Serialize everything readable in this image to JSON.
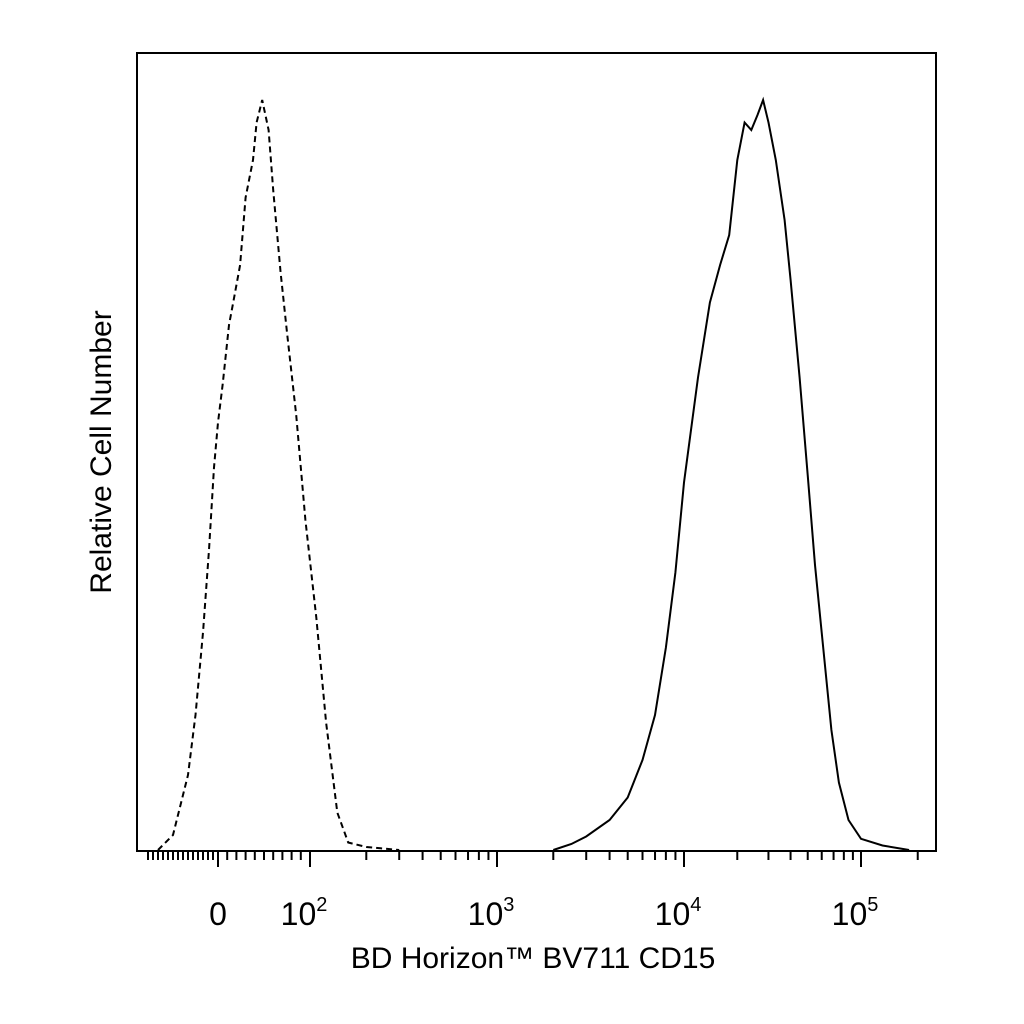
{
  "chart_data": {
    "type": "line",
    "title": "",
    "xlabel": "BD Horizon™ BV711 CD15",
    "ylabel": "Relative Cell Number",
    "x_scale": "biexponential (log above ~10^2, linear around 0)",
    "xlim": [
      -150,
      250000
    ],
    "ylim": [
      0,
      100
    ],
    "grid": false,
    "legend": "none",
    "x_tick_labels": [
      {
        "value": 0,
        "base": "0",
        "exp": ""
      },
      {
        "value": 100,
        "base": "10",
        "exp": "2"
      },
      {
        "value": 1000,
        "base": "10",
        "exp": "3"
      },
      {
        "value": 10000,
        "base": "10",
        "exp": "4"
      },
      {
        "value": 100000,
        "base": "10",
        "exp": "5"
      }
    ],
    "series": [
      {
        "style": "dashed",
        "points": [
          [
            -120,
            0
          ],
          [
            -90,
            2
          ],
          [
            -60,
            10
          ],
          [
            -45,
            18
          ],
          [
            -30,
            29
          ],
          [
            -18,
            40
          ],
          [
            -8,
            51
          ],
          [
            0,
            57
          ],
          [
            5,
            62
          ],
          [
            12,
            70
          ],
          [
            18,
            74
          ],
          [
            24,
            78
          ],
          [
            30,
            87
          ],
          [
            38,
            92
          ],
          [
            42,
            97
          ],
          [
            48,
            100
          ],
          [
            55,
            96
          ],
          [
            60,
            88
          ],
          [
            68,
            77
          ],
          [
            75,
            69
          ],
          [
            85,
            58
          ],
          [
            95,
            44
          ],
          [
            108,
            31
          ],
          [
            122,
            17
          ],
          [
            140,
            5
          ],
          [
            160,
            1
          ],
          [
            200,
            0.4
          ],
          [
            300,
            0
          ]
        ]
      },
      {
        "style": "solid",
        "points": [
          [
            2000,
            0
          ],
          [
            2500,
            0.8
          ],
          [
            3000,
            1.8
          ],
          [
            4000,
            4
          ],
          [
            5000,
            7
          ],
          [
            6000,
            12
          ],
          [
            7000,
            18
          ],
          [
            8000,
            27
          ],
          [
            9000,
            37
          ],
          [
            10000,
            49
          ],
          [
            12000,
            63
          ],
          [
            14000,
            73
          ],
          [
            16000,
            78
          ],
          [
            18000,
            82
          ],
          [
            20000,
            92
          ],
          [
            22000,
            97
          ],
          [
            24000,
            96
          ],
          [
            26000,
            98
          ],
          [
            28000,
            100
          ],
          [
            30000,
            97
          ],
          [
            33000,
            92
          ],
          [
            37000,
            84
          ],
          [
            40000,
            76
          ],
          [
            45000,
            63
          ],
          [
            50000,
            50
          ],
          [
            55000,
            38
          ],
          [
            60000,
            29
          ],
          [
            68000,
            16
          ],
          [
            75000,
            9
          ],
          [
            85000,
            4
          ],
          [
            100000,
            1.5
          ],
          [
            130000,
            0.6
          ],
          [
            180000,
            0
          ]
        ]
      }
    ]
  }
}
